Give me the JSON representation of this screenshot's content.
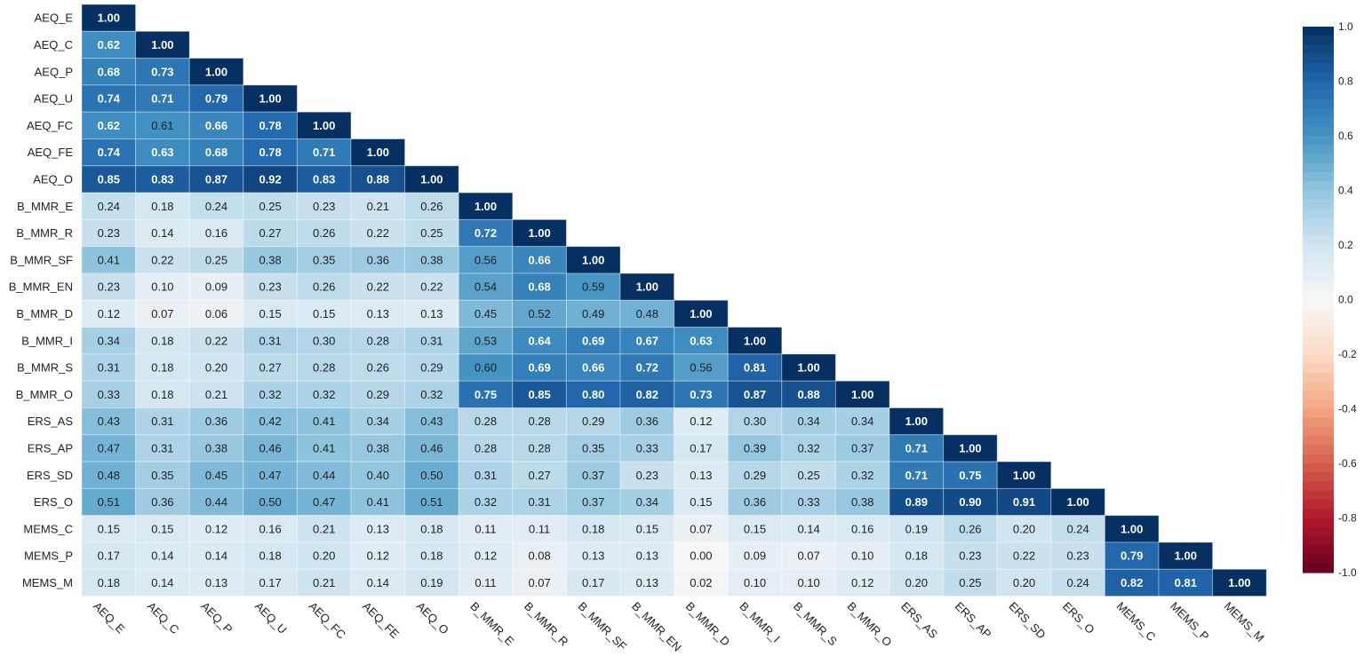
{
  "chart_data": {
    "type": "heatmap",
    "title": "",
    "labels": [
      "AEQ_E",
      "AEQ_C",
      "AEQ_P",
      "AEQ_U",
      "AEQ_FC",
      "AEQ_FE",
      "AEQ_O",
      "B_MMR_E",
      "B_MMR_R",
      "B_MMR_SF",
      "B_MMR_EN",
      "B_MMR_D",
      "B_MMR_I",
      "B_MMR_S",
      "B_MMR_O",
      "ERS_AS",
      "ERS_AP",
      "ERS_SD",
      "ERS_O",
      "MEMS_C",
      "MEMS_P",
      "MEMS_M"
    ],
    "lower_triangle": [
      [
        "1.00"
      ],
      [
        "0.62",
        "1.00"
      ],
      [
        "0.68",
        "0.73",
        "1.00"
      ],
      [
        "0.74",
        "0.71",
        "0.79",
        "1.00"
      ],
      [
        "0.62",
        "0.61",
        "0.66",
        "0.78",
        "1.00"
      ],
      [
        "0.74",
        "0.63",
        "0.68",
        "0.78",
        "0.71",
        "1.00"
      ],
      [
        "0.85",
        "0.83",
        "0.87",
        "0.92",
        "0.83",
        "0.88",
        "1.00"
      ],
      [
        "0.24",
        "0.18",
        "0.24",
        "0.25",
        "0.23",
        "0.21",
        "0.26",
        "1.00"
      ],
      [
        "0.23",
        "0.14",
        "0.16",
        "0.27",
        "0.26",
        "0.22",
        "0.25",
        "0.72",
        "1.00"
      ],
      [
        "0.41",
        "0.22",
        "0.25",
        "0.38",
        "0.35",
        "0.36",
        "0.38",
        "0.56",
        "0.66",
        "1.00"
      ],
      [
        "0.23",
        "0.10",
        "0.09",
        "0.23",
        "0.26",
        "0.22",
        "0.22",
        "0.54",
        "0.68",
        "0.59",
        "1.00"
      ],
      [
        "0.12",
        "0.07",
        "0.06",
        "0.15",
        "0.15",
        "0.13",
        "0.13",
        "0.45",
        "0.52",
        "0.49",
        "0.48",
        "1.00"
      ],
      [
        "0.34",
        "0.18",
        "0.22",
        "0.31",
        "0.30",
        "0.28",
        "0.31",
        "0.53",
        "0.64",
        "0.69",
        "0.67",
        "0.63",
        "1.00"
      ],
      [
        "0.31",
        "0.18",
        "0.20",
        "0.27",
        "0.28",
        "0.26",
        "0.29",
        "0.60",
        "0.69",
        "0.66",
        "0.72",
        "0.56",
        "0.81",
        "1.00"
      ],
      [
        "0.33",
        "0.18",
        "0.21",
        "0.32",
        "0.32",
        "0.29",
        "0.32",
        "0.75",
        "0.85",
        "0.80",
        "0.82",
        "0.73",
        "0.87",
        "0.88",
        "1.00"
      ],
      [
        "0.43",
        "0.31",
        "0.36",
        "0.42",
        "0.41",
        "0.34",
        "0.43",
        "0.28",
        "0.28",
        "0.29",
        "0.36",
        "0.12",
        "0.30",
        "0.34",
        "0.34",
        "1.00"
      ],
      [
        "0.47",
        "0.31",
        "0.38",
        "0.46",
        "0.41",
        "0.38",
        "0.46",
        "0.28",
        "0.28",
        "0.35",
        "0.33",
        "0.17",
        "0.39",
        "0.32",
        "0.37",
        "0.71",
        "1.00"
      ],
      [
        "0.48",
        "0.35",
        "0.45",
        "0.47",
        "0.44",
        "0.40",
        "0.50",
        "0.31",
        "0.27",
        "0.37",
        "0.23",
        "0.13",
        "0.29",
        "0.25",
        "0.32",
        "0.71",
        "0.75",
        "1.00"
      ],
      [
        "0.51",
        "0.36",
        "0.44",
        "0.50",
        "0.47",
        "0.41",
        "0.51",
        "0.32",
        "0.31",
        "0.37",
        "0.34",
        "0.15",
        "0.36",
        "0.33",
        "0.38",
        "0.89",
        "0.90",
        "0.91",
        "1.00"
      ],
      [
        "0.15",
        "0.15",
        "0.12",
        "0.16",
        "0.21",
        "0.13",
        "0.18",
        "0.11",
        "0.11",
        "0.18",
        "0.15",
        "0.07",
        "0.15",
        "0.14",
        "0.16",
        "0.19",
        "0.26",
        "0.20",
        "0.24",
        "1.00"
      ],
      [
        "0.17",
        "0.14",
        "0.14",
        "0.18",
        "0.20",
        "0.12",
        "0.18",
        "0.12",
        "0.08",
        "0.13",
        "0.13",
        "0.00",
        "0.09",
        "0.07",
        "0.10",
        "0.18",
        "0.23",
        "0.22",
        "0.23",
        "0.79",
        "1.00"
      ],
      [
        "0.18",
        "0.14",
        "0.13",
        "0.17",
        "0.21",
        "0.14",
        "0.19",
        "0.11",
        "0.07",
        "0.17",
        "0.13",
        "0.02",
        "0.10",
        "0.10",
        "0.12",
        "0.20",
        "0.25",
        "0.20",
        "0.24",
        "0.82",
        "0.81",
        "1.00"
      ]
    ],
    "colormap": "RdBu",
    "colormap_stops": [
      "#67001f",
      "#b2182b",
      "#d6604d",
      "#f4a582",
      "#fddbc7",
      "#f7f7f7",
      "#d1e5f0",
      "#92c5de",
      "#4393c3",
      "#2166ac",
      "#053061"
    ],
    "vmin": -1.0,
    "vmax": 1.0,
    "colorbar_ticks": [
      "1.0",
      "0.8",
      "0.6",
      "0.4",
      "0.2",
      "0.0",
      "-0.2",
      "-0.4",
      "-0.6",
      "-0.8",
      "-1.0"
    ],
    "legend_placement": "right"
  }
}
